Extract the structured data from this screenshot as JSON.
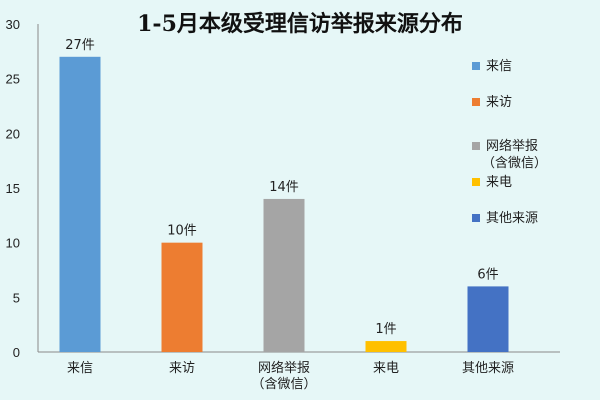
{
  "chart_data": {
    "type": "bar",
    "title": "1-5月本级受理信访举报来源分布",
    "categories": [
      [
        "来信"
      ],
      [
        "来访"
      ],
      [
        "网络举报",
        "（含微信）"
      ],
      [
        "来电"
      ],
      [
        "其他来源"
      ]
    ],
    "values": [
      27,
      10,
      14,
      1,
      6
    ],
    "data_labels": [
      "27件",
      "10件",
      "14件",
      "1件",
      "6件"
    ],
    "colors": [
      "#5b9bd5",
      "#ed7d31",
      "#a5a5a5",
      "#ffc000",
      "#4472c4"
    ],
    "ylim": [
      0,
      30
    ],
    "yticks": [
      "0",
      "5",
      "10",
      "15",
      "20",
      "25",
      "30"
    ],
    "ytick_values": [
      0,
      5,
      10,
      15,
      20,
      25,
      30
    ],
    "xlabel": "",
    "ylabel": "",
    "grid": false,
    "legend": {
      "placement": "right",
      "entries": [
        [
          "来信"
        ],
        [
          "来访"
        ],
        [
          "网络举报",
          "（含微信）"
        ],
        [
          "来电"
        ],
        [
          "其他来源"
        ]
      ]
    }
  }
}
